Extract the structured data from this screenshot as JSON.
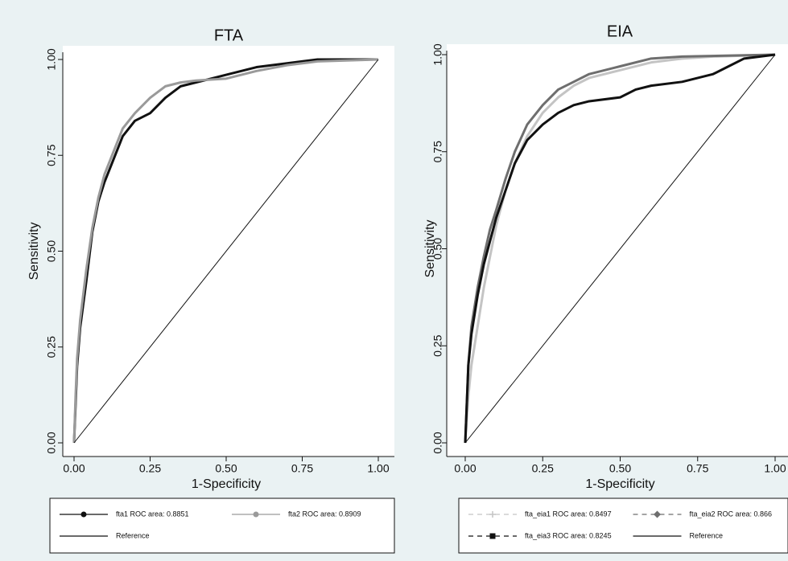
{
  "chart_data": [
    {
      "type": "line",
      "title": "FTA",
      "x_label": "1-Specificity",
      "y_label": "Sensitivity",
      "xlim": [
        0,
        1
      ],
      "ylim": [
        0,
        1
      ],
      "xticks": [
        {
          "value": 0,
          "label": "0.00"
        },
        {
          "value": 0.25,
          "label": "0.25"
        },
        {
          "value": 0.5,
          "label": "0.50"
        },
        {
          "value": 0.75,
          "label": "0.75"
        },
        {
          "value": 1,
          "label": "1.00"
        }
      ],
      "yticks": [
        {
          "value": 0,
          "label": "0.00"
        },
        {
          "value": 0.25,
          "label": "0.25"
        },
        {
          "value": 0.5,
          "label": "0.50"
        },
        {
          "value": 0.75,
          "label": "0.75"
        },
        {
          "value": 1,
          "label": "1.00"
        }
      ],
      "legend": "bottom",
      "series": [
        {
          "name": "fta1 ROC area: 0.8851",
          "color": "#111111",
          "marker": "circle",
          "width": 3,
          "x": [
            0,
            0.005,
            0.01,
            0.02,
            0.04,
            0.06,
            0.08,
            0.1,
            0.13,
            0.16,
            0.2,
            0.25,
            0.3,
            0.35,
            0.4,
            0.5,
            0.6,
            0.7,
            0.8,
            1
          ],
          "values": [
            0,
            0.1,
            0.2,
            0.3,
            0.42,
            0.55,
            0.63,
            0.68,
            0.74,
            0.8,
            0.84,
            0.86,
            0.9,
            0.93,
            0.94,
            0.96,
            0.98,
            0.99,
            1,
            1
          ]
        },
        {
          "name": "fta2 ROC area: 0.8909",
          "color": "#9a9a9a",
          "marker": "circle",
          "width": 3,
          "x": [
            0,
            0.005,
            0.01,
            0.02,
            0.04,
            0.06,
            0.08,
            0.1,
            0.13,
            0.16,
            0.2,
            0.25,
            0.3,
            0.35,
            0.4,
            0.5,
            0.6,
            0.7,
            0.8,
            1
          ],
          "values": [
            0,
            0.12,
            0.22,
            0.32,
            0.45,
            0.56,
            0.64,
            0.7,
            0.76,
            0.82,
            0.86,
            0.9,
            0.93,
            0.94,
            0.945,
            0.95,
            0.97,
            0.985,
            0.995,
            1
          ]
        },
        {
          "name": "Reference",
          "color": "#111111",
          "marker": "none",
          "width": 1,
          "x": [
            0,
            1
          ],
          "values": [
            0,
            1
          ]
        }
      ]
    },
    {
      "type": "line",
      "title": "EIA",
      "x_label": "1-Specificity",
      "y_label": "Sensitivity",
      "xlim": [
        0,
        1
      ],
      "ylim": [
        0,
        1
      ],
      "xticks": [
        {
          "value": 0,
          "label": "0.00"
        },
        {
          "value": 0.25,
          "label": "0.25"
        },
        {
          "value": 0.5,
          "label": "0.50"
        },
        {
          "value": 0.75,
          "label": "0.75"
        },
        {
          "value": 1,
          "label": "1.00"
        }
      ],
      "yticks": [
        {
          "value": 0,
          "label": "0.00"
        },
        {
          "value": 0.25,
          "label": "0.25"
        },
        {
          "value": 0.5,
          "label": "0.50"
        },
        {
          "value": 0.75,
          "label": "0.75"
        },
        {
          "value": 1,
          "label": "1.00"
        }
      ],
      "legend": "bottom",
      "series": [
        {
          "name": "fta_eia1 ROC area: 0.8497",
          "color": "#c4c4c4",
          "marker": "plus",
          "width": 3,
          "x": [
            0,
            0.01,
            0.02,
            0.04,
            0.06,
            0.08,
            0.1,
            0.13,
            0.16,
            0.2,
            0.25,
            0.3,
            0.35,
            0.4,
            0.5,
            0.6,
            0.7,
            0.8,
            1
          ],
          "values": [
            0,
            0.12,
            0.2,
            0.3,
            0.4,
            0.48,
            0.56,
            0.65,
            0.72,
            0.79,
            0.85,
            0.89,
            0.92,
            0.94,
            0.96,
            0.98,
            0.99,
            0.995,
            1
          ]
        },
        {
          "name": "fta_eia2 ROC area: 0.866",
          "color": "#6e6e6e",
          "marker": "diamond",
          "width": 3,
          "x": [
            0,
            0.01,
            0.02,
            0.04,
            0.06,
            0.08,
            0.1,
            0.13,
            0.16,
            0.2,
            0.25,
            0.3,
            0.35,
            0.4,
            0.5,
            0.6,
            0.7,
            1
          ],
          "values": [
            0,
            0.2,
            0.3,
            0.4,
            0.48,
            0.55,
            0.6,
            0.68,
            0.75,
            0.82,
            0.87,
            0.91,
            0.93,
            0.95,
            0.97,
            0.99,
            0.995,
            1
          ]
        },
        {
          "name": "fta_eia3 ROC area: 0.8245",
          "color": "#111111",
          "marker": "square",
          "width": 3,
          "x": [
            0,
            0.01,
            0.02,
            0.04,
            0.06,
            0.08,
            0.1,
            0.13,
            0.16,
            0.2,
            0.25,
            0.3,
            0.35,
            0.4,
            0.5,
            0.55,
            0.6,
            0.7,
            0.8,
            0.85,
            0.9,
            1
          ],
          "values": [
            0,
            0.2,
            0.28,
            0.38,
            0.46,
            0.52,
            0.58,
            0.65,
            0.72,
            0.78,
            0.82,
            0.85,
            0.87,
            0.88,
            0.89,
            0.91,
            0.92,
            0.93,
            0.95,
            0.97,
            0.99,
            1
          ]
        },
        {
          "name": "Reference",
          "color": "#111111",
          "marker": "none",
          "width": 1,
          "x": [
            0,
            1
          ],
          "values": [
            0,
            1
          ]
        }
      ]
    }
  ]
}
